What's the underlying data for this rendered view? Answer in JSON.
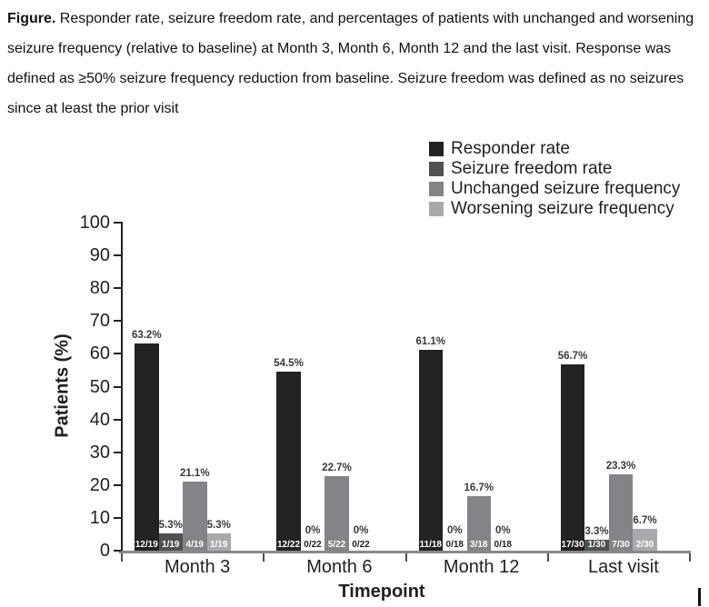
{
  "figure_caption": {
    "label": "Figure.",
    "text": " Responder rate, seizure freedom rate, and percentages of patients with unchanged and worsening seizure frequency (relative to baseline) at Month 3, Month 6, Month 12 and the last visit. Response was defined as ≥50% seizure frequency reduction from baseline. Seizure freedom was defined as no seizures since at least the prior visit"
  },
  "chart_data": {
    "type": "bar",
    "title": "",
    "xlabel": "Timepoint",
    "ylabel": "Patients (%)",
    "ylim": [
      0,
      100
    ],
    "yticks": [
      0,
      10,
      20,
      30,
      40,
      50,
      60,
      70,
      80,
      90,
      100
    ],
    "grid": false,
    "legend_position": "top-right",
    "categories": [
      "Month 3",
      "Month 6",
      "Month 12",
      "Last visit"
    ],
    "series": [
      {
        "name": "Responder rate",
        "color": "#242122",
        "values": [
          63.2,
          54.5,
          61.1,
          56.7
        ],
        "value_labels": [
          "63.2%",
          "54.5%",
          "61.1%",
          "56.7%"
        ],
        "fractions": [
          "12/19",
          "12/22",
          "11/18",
          "17/30"
        ]
      },
      {
        "name": "Seizure freedom rate",
        "color": "#4f5052",
        "values": [
          5.3,
          0,
          0,
          3.3
        ],
        "value_labels": [
          "5.3%",
          "0%",
          "0%",
          "3.3%"
        ],
        "fractions": [
          "1/19",
          "0/22",
          "0/18",
          "1/30"
        ]
      },
      {
        "name": "Unchanged seizure frequency",
        "color": "#828487",
        "values": [
          21.1,
          22.7,
          16.7,
          23.3
        ],
        "value_labels": [
          "21.1%",
          "22.7%",
          "16.7%",
          "23.3%"
        ],
        "fractions": [
          "4/19",
          "5/22",
          "3/18",
          "7/30"
        ]
      },
      {
        "name": "Worsening seizure frequency",
        "color": "#a8aaad",
        "values": [
          5.3,
          0,
          0,
          6.7
        ],
        "value_labels": [
          "5.3%",
          "0%",
          "0%",
          "6.7%"
        ],
        "fractions": [
          "1/19",
          "0/22",
          "0/18",
          "2/30"
        ]
      }
    ]
  }
}
